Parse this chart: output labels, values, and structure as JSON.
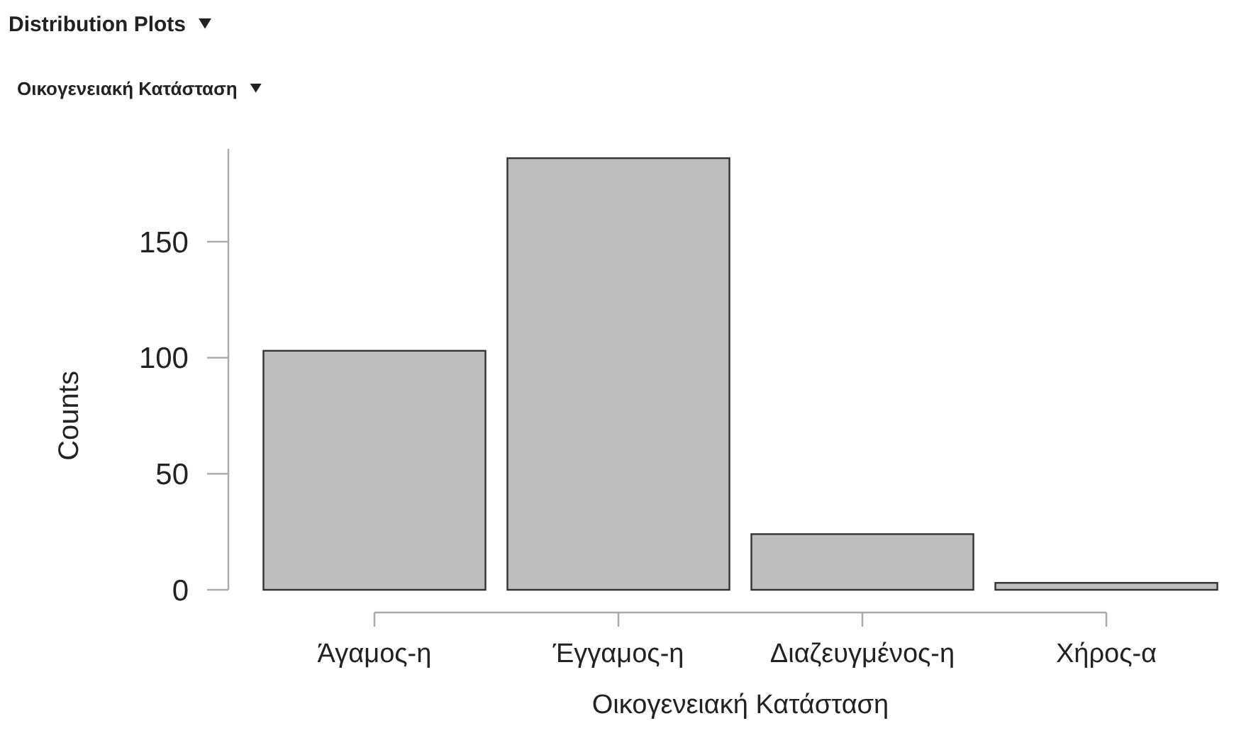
{
  "chart_data": {
    "type": "bar",
    "title": "Distribution Plots",
    "subtitle": "Οικογενειακή Κατάσταση",
    "categories": [
      "Άγαμος-η",
      "Έγγαμος-η",
      "Διαζευγμένος-η",
      "Χήρος-α"
    ],
    "values": [
      103,
      186,
      24,
      3
    ],
    "color": "#bebebe",
    "xlabel": "Οικογενειακή Κατάσταση",
    "ylabel": "Counts",
    "ylim": [
      0,
      190
    ],
    "yticks": [
      0,
      50,
      100,
      150
    ],
    "grid": false
  }
}
